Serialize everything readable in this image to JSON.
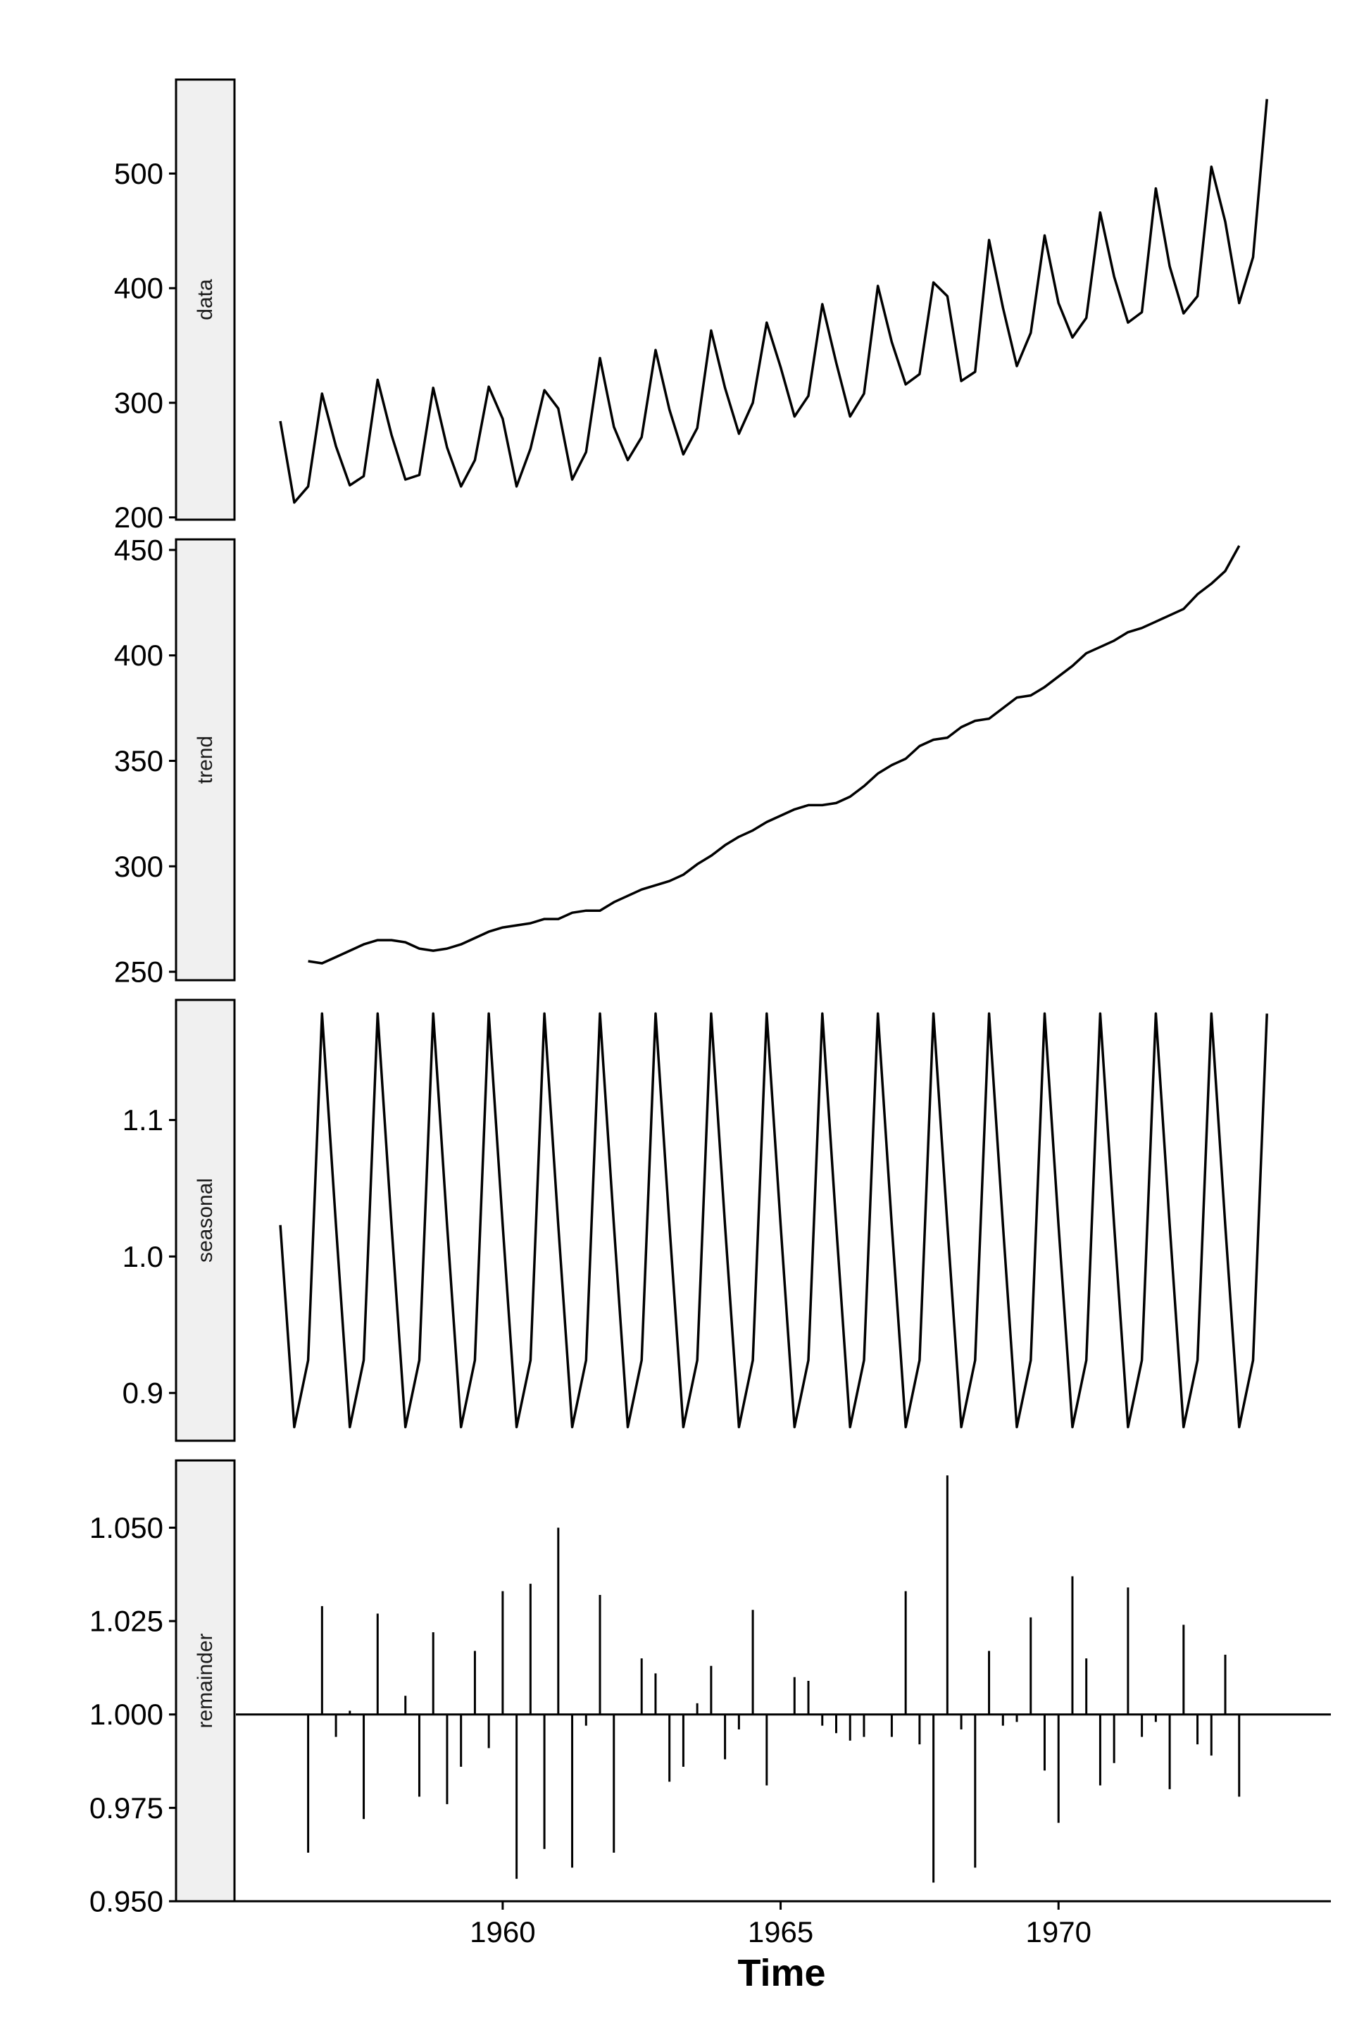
{
  "chart_data": {
    "type": "line",
    "title": "",
    "xlabel": "Time",
    "x_ticks": [
      1960,
      1965,
      1970
    ],
    "x_range": [
      1955.2,
      1974.9
    ],
    "panels": [
      {
        "name": "data",
        "strip_label": "data",
        "ylim": [
          198,
          582
        ],
        "y_ticks": [
          {
            "value": 200,
            "label": "200"
          },
          {
            "value": 300,
            "label": "300"
          },
          {
            "value": 400,
            "label": "400"
          },
          {
            "value": 500,
            "label": "500"
          }
        ],
        "x": [
          1956.0,
          1956.25,
          1956.5,
          1956.75,
          1957.0,
          1957.25,
          1957.5,
          1957.75,
          1958.0,
          1958.25,
          1958.5,
          1958.75,
          1959.0,
          1959.25,
          1959.5,
          1959.75,
          1960.0,
          1960.25,
          1960.5,
          1960.75,
          1961.0,
          1961.25,
          1961.5,
          1961.75,
          1962.0,
          1962.25,
          1962.5,
          1962.75,
          1963.0,
          1963.25,
          1963.5,
          1963.75,
          1964.0,
          1964.25,
          1964.5,
          1964.75,
          1965.0,
          1965.25,
          1965.5,
          1965.75,
          1966.0,
          1966.25,
          1966.5,
          1966.75,
          1967.0,
          1967.25,
          1967.5,
          1967.75,
          1968.0,
          1968.25,
          1968.5,
          1968.75,
          1969.0,
          1969.25,
          1969.5,
          1969.75,
          1970.0,
          1970.25,
          1970.5,
          1970.75,
          1971.0,
          1971.25,
          1971.5,
          1971.75,
          1972.0,
          1972.25,
          1972.5,
          1972.75,
          1973.0,
          1973.25,
          1973.5,
          1973.75
        ],
        "values": [
          284,
          213,
          227,
          308,
          262,
          228,
          236,
          320,
          272,
          233,
          237,
          313,
          261,
          227,
          250,
          314,
          286,
          227,
          260,
          311,
          295,
          233,
          257,
          339,
          279,
          250,
          270,
          346,
          294,
          255,
          278,
          363,
          313,
          273,
          300,
          370,
          331,
          288,
          306,
          386,
          335,
          288,
          308,
          402,
          353,
          316,
          325,
          405,
          393,
          319,
          327,
          442,
          383,
          332,
          361,
          446,
          387,
          357,
          374,
          466,
          410,
          370,
          379,
          487,
          419,
          378,
          393,
          506,
          458,
          387,
          427,
          565
        ]
      },
      {
        "name": "trend",
        "strip_label": "trend",
        "ylim": [
          246,
          455
        ],
        "y_ticks": [
          {
            "value": 250,
            "label": "250"
          },
          {
            "value": 300,
            "label": "300"
          },
          {
            "value": 350,
            "label": "350"
          },
          {
            "value": 400,
            "label": "400"
          },
          {
            "value": 450,
            "label": "450"
          }
        ],
        "x": [
          1956.5,
          1956.75,
          1957.0,
          1957.25,
          1957.5,
          1957.75,
          1958.0,
          1958.25,
          1958.5,
          1958.75,
          1959.0,
          1959.25,
          1959.5,
          1959.75,
          1960.0,
          1960.25,
          1960.5,
          1960.75,
          1961.0,
          1961.25,
          1961.5,
          1961.75,
          1962.0,
          1962.25,
          1962.5,
          1962.75,
          1963.0,
          1963.25,
          1963.5,
          1963.75,
          1964.0,
          1964.25,
          1964.5,
          1964.75,
          1965.0,
          1965.25,
          1965.5,
          1965.75,
          1966.0,
          1966.25,
          1966.5,
          1966.75,
          1967.0,
          1967.25,
          1967.5,
          1967.75,
          1968.0,
          1968.25,
          1968.5,
          1968.75,
          1969.0,
          1969.25,
          1969.5,
          1969.75,
          1970.0,
          1970.25,
          1970.5,
          1970.75,
          1971.0,
          1971.25,
          1971.5,
          1971.75,
          1972.0,
          1972.25,
          1972.5,
          1972.75,
          1973.0,
          1973.25
        ],
        "values": [
          255,
          254,
          257,
          260,
          263,
          265,
          265,
          264,
          261,
          260,
          261,
          263,
          266,
          269,
          271,
          272,
          273,
          275,
          275,
          278,
          279,
          279,
          283,
          286,
          289,
          291,
          293,
          296,
          301,
          305,
          310,
          314,
          317,
          321,
          324,
          327,
          329,
          329,
          330,
          333,
          338,
          344,
          348,
          351,
          357,
          360,
          361,
          366,
          369,
          370,
          375,
          380,
          381,
          385,
          390,
          395,
          401,
          404,
          407,
          411,
          413,
          416,
          419,
          422,
          429,
          434,
          440,
          452
        ]
      },
      {
        "name": "seasonal",
        "strip_label": "seasonal",
        "ylim": [
          0.865,
          1.188
        ],
        "y_ticks": [
          {
            "value": 0.9,
            "label": "0.9"
          },
          {
            "value": 1.0,
            "label": "1.0"
          },
          {
            "value": 1.1,
            "label": "1.1"
          }
        ],
        "x": [
          1956.0,
          1956.25,
          1956.5,
          1956.75,
          1957.0,
          1957.25,
          1957.5,
          1957.75,
          1958.0,
          1958.25,
          1958.5,
          1958.75,
          1959.0,
          1959.25,
          1959.5,
          1959.75,
          1960.0,
          1960.25,
          1960.5,
          1960.75,
          1961.0,
          1961.25,
          1961.5,
          1961.75,
          1962.0,
          1962.25,
          1962.5,
          1962.75,
          1963.0,
          1963.25,
          1963.5,
          1963.75,
          1964.0,
          1964.25,
          1964.5,
          1964.75,
          1965.0,
          1965.25,
          1965.5,
          1965.75,
          1966.0,
          1966.25,
          1966.5,
          1966.75,
          1967.0,
          1967.25,
          1967.5,
          1967.75,
          1968.0,
          1968.25,
          1968.5,
          1968.75,
          1969.0,
          1969.25,
          1969.5,
          1969.75,
          1970.0,
          1970.25,
          1970.5,
          1970.75,
          1971.0,
          1971.25,
          1971.5,
          1971.75,
          1972.0,
          1972.25,
          1972.5,
          1972.75,
          1973.0,
          1973.25,
          1973.5,
          1973.75
        ],
        "values": [
          1.023,
          0.875,
          0.924,
          1.178,
          1.023,
          0.875,
          0.924,
          1.178,
          1.023,
          0.875,
          0.924,
          1.178,
          1.023,
          0.875,
          0.924,
          1.178,
          1.023,
          0.875,
          0.924,
          1.178,
          1.023,
          0.875,
          0.924,
          1.178,
          1.023,
          0.875,
          0.924,
          1.178,
          1.023,
          0.875,
          0.924,
          1.178,
          1.023,
          0.875,
          0.924,
          1.178,
          1.023,
          0.875,
          0.924,
          1.178,
          1.023,
          0.875,
          0.924,
          1.178,
          1.023,
          0.875,
          0.924,
          1.178,
          1.023,
          0.875,
          0.924,
          1.178,
          1.023,
          0.875,
          0.924,
          1.178,
          1.023,
          0.875,
          0.924,
          1.178,
          1.023,
          0.875,
          0.924,
          1.178,
          1.023,
          0.875,
          0.924,
          1.178,
          1.023,
          0.875,
          0.924,
          1.178
        ]
      },
      {
        "name": "remainder",
        "strip_label": "remainder",
        "type": "bar",
        "baseline": 1.0,
        "ylim": [
          0.95,
          1.068
        ],
        "y_ticks": [
          {
            "value": 0.95,
            "label": "0.950"
          },
          {
            "value": 0.975,
            "label": "0.975"
          },
          {
            "value": 1.0,
            "label": "1.000"
          },
          {
            "value": 1.025,
            "label": "1.025"
          },
          {
            "value": 1.05,
            "label": "1.050"
          }
        ],
        "x": [
          1956.5,
          1956.75,
          1957.0,
          1957.25,
          1957.5,
          1957.75,
          1958.0,
          1958.25,
          1958.5,
          1958.75,
          1959.0,
          1959.25,
          1959.5,
          1959.75,
          1960.0,
          1960.25,
          1960.5,
          1960.75,
          1961.0,
          1961.25,
          1961.5,
          1961.75,
          1962.0,
          1962.25,
          1962.5,
          1962.75,
          1963.0,
          1963.25,
          1963.5,
          1963.75,
          1964.0,
          1964.25,
          1964.5,
          1964.75,
          1965.0,
          1965.25,
          1965.5,
          1965.75,
          1966.0,
          1966.25,
          1966.5,
          1966.75,
          1967.0,
          1967.25,
          1967.5,
          1967.75,
          1968.0,
          1968.25,
          1968.5,
          1968.75,
          1969.0,
          1969.25,
          1969.5,
          1969.75,
          1970.0,
          1970.25,
          1970.5,
          1970.75,
          1971.0,
          1971.25,
          1971.5,
          1971.75,
          1972.0,
          1972.25,
          1972.5,
          1972.75,
          1973.0,
          1973.25
        ],
        "values": [
          0.963,
          1.029,
          0.994,
          1.001,
          0.972,
          1.027,
          1.0,
          1.005,
          0.978,
          1.022,
          0.976,
          0.986,
          1.017,
          0.991,
          1.033,
          0.956,
          1.035,
          0.964,
          1.05,
          0.959,
          0.997,
          1.032,
          0.963,
          1.0,
          1.015,
          1.011,
          0.982,
          0.986,
          1.003,
          1.013,
          0.988,
          0.996,
          1.028,
          0.981,
          1.0,
          1.01,
          1.009,
          0.997,
          0.995,
          0.993,
          0.994,
          1.0,
          0.994,
          1.033,
          0.992,
          0.955,
          1.064,
          0.996,
          0.959,
          1.017,
          0.997,
          0.998,
          1.026,
          0.985,
          0.971,
          1.037,
          1.015,
          0.981,
          0.987,
          1.034,
          0.994,
          0.998,
          0.98,
          1.024,
          0.992,
          0.989,
          1.016,
          0.978
        ]
      }
    ]
  }
}
